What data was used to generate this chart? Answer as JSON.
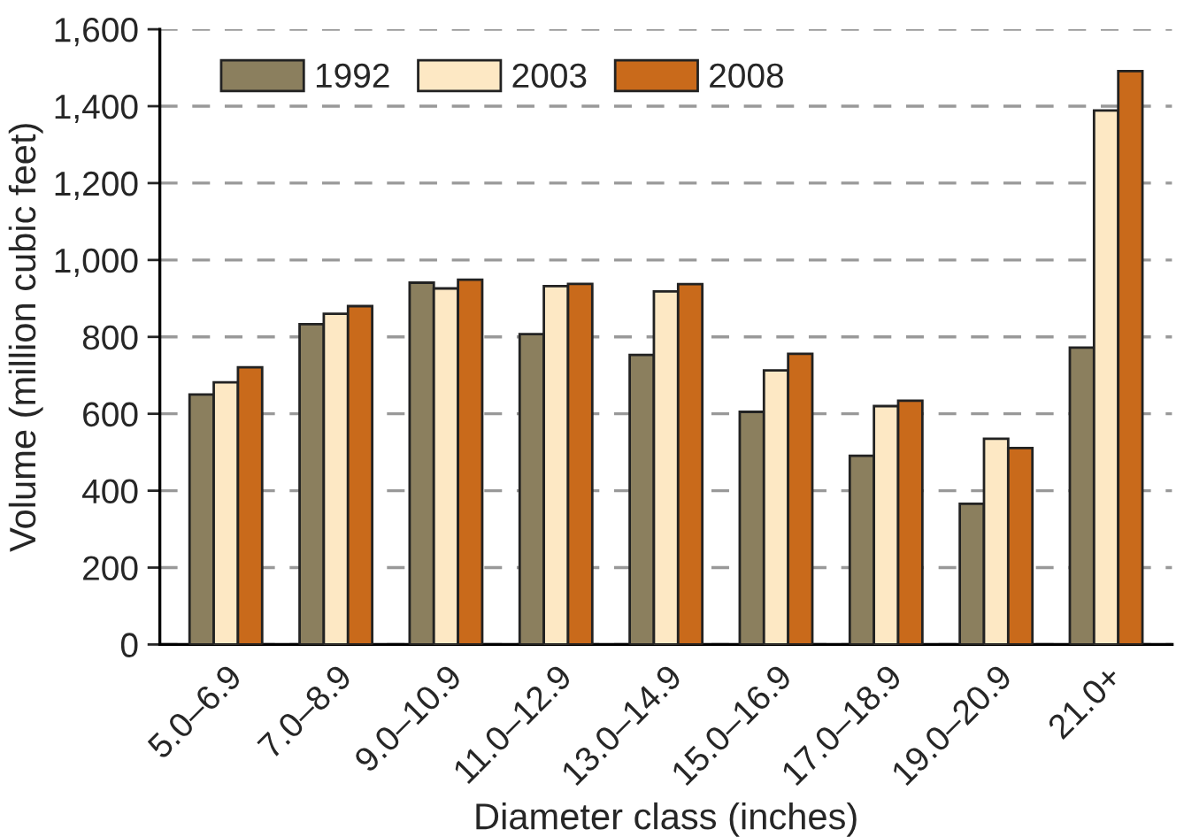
{
  "chart_data": {
    "type": "bar",
    "xlabel": "Diameter class (inches)",
    "ylabel": "Volume (million cubic feet)",
    "categories": [
      "5.0–6.9",
      "7.0–8.9",
      "9.0–10.9",
      "11.0–12.9",
      "13.0–14.9",
      "15.0–16.9",
      "17.0–18.9",
      "19.0–20.9",
      "21.0+"
    ],
    "series": [
      {
        "name": "1992",
        "color": "#8b7f5e",
        "values": [
          650,
          833,
          941,
          807,
          753,
          605,
          491,
          366,
          772
        ]
      },
      {
        "name": "2003",
        "color": "#fde8c4",
        "values": [
          682,
          860,
          926,
          932,
          918,
          713,
          620,
          535,
          1389
        ]
      },
      {
        "name": "2008",
        "color": "#c96a1b",
        "values": [
          721,
          880,
          949,
          938,
          937,
          756,
          634,
          511,
          1491
        ]
      }
    ],
    "ylim": [
      0,
      1600
    ],
    "yticks": [
      {
        "value": 0,
        "label": "0"
      },
      {
        "value": 200,
        "label": "200"
      },
      {
        "value": 400,
        "label": "400"
      },
      {
        "value": 600,
        "label": "600"
      },
      {
        "value": 800,
        "label": "800"
      },
      {
        "value": 1000,
        "label": "1,000"
      },
      {
        "value": 1200,
        "label": "1,200"
      },
      {
        "value": 1400,
        "label": "1,400"
      },
      {
        "value": 1600,
        "label": "1,600"
      }
    ],
    "grid": "y",
    "legend": "top left"
  }
}
